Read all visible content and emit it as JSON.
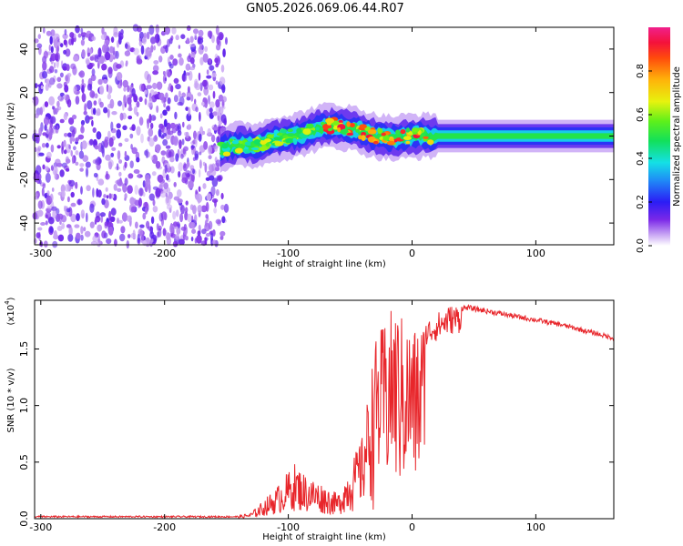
{
  "title": "GN05.2026.069.06.44.R07",
  "chart_data": [
    {
      "type": "heatmap",
      "xlabel": "Height of straight line (km)",
      "ylabel": "Frequency (Hz)",
      "xlim": [
        -305,
        163
      ],
      "ylim": [
        -50,
        50
      ],
      "xticks": [
        -300,
        -200,
        -100,
        0,
        100
      ],
      "yticks": [
        -40,
        -20,
        0,
        20,
        40
      ],
      "colorbar": {
        "label": "Normalized spectral amplitude",
        "range": [
          0,
          1
        ],
        "ticks": [
          0.0,
          0.2,
          0.4,
          0.6,
          0.8
        ],
        "tick_labels": [
          "0.0",
          "0.2",
          "0.4",
          "0.6",
          "0.8"
        ]
      },
      "noise_region": {
        "x_range": [
          -305,
          -150
        ],
        "freq_range": [
          -50,
          50
        ],
        "amplitude_range": [
          0.05,
          0.25
        ]
      },
      "center_frequency_track": [
        {
          "x": -155,
          "f": -6
        },
        {
          "x": -140,
          "f": -4
        },
        {
          "x": -125,
          "f": -4
        },
        {
          "x": -110,
          "f": -1
        },
        {
          "x": -95,
          "f": 0
        },
        {
          "x": -80,
          "f": 3
        },
        {
          "x": -65,
          "f": 5
        },
        {
          "x": -55,
          "f": 4
        },
        {
          "x": -45,
          "f": 3
        },
        {
          "x": -30,
          "f": 0
        },
        {
          "x": -15,
          "f": -1
        },
        {
          "x": 0,
          "f": 0
        },
        {
          "x": 50,
          "f": 0
        },
        {
          "x": 100,
          "f": 0
        },
        {
          "x": 163,
          "f": 0
        }
      ]
    },
    {
      "type": "line",
      "xlabel": "Height of straight line (km)",
      "ylabel": "SNR (10 * v/v)",
      "scale_label": "(x10",
      "scale_exp": "4",
      "xlim": [
        -305,
        163
      ],
      "ylim": [
        0,
        1.93
      ],
      "xticks": [
        -300,
        -200,
        -100,
        0,
        100
      ],
      "yticks": [
        0.0,
        0.5,
        1.0,
        1.5
      ],
      "ytick_labels": [
        "0.0",
        "0.5",
        "1.0",
        "1.5"
      ],
      "color": "#e8262b",
      "envelope": [
        {
          "x": -305,
          "y": 0.0
        },
        {
          "x": -150,
          "y": 0.0
        },
        {
          "x": -130,
          "y": 0.05
        },
        {
          "x": -110,
          "y": 0.25
        },
        {
          "x": -95,
          "y": 0.45
        },
        {
          "x": -85,
          "y": 0.35
        },
        {
          "x": -75,
          "y": 0.3
        },
        {
          "x": -60,
          "y": 0.2
        },
        {
          "x": -40,
          "y": 0.7
        },
        {
          "x": -30,
          "y": 1.5
        },
        {
          "x": -15,
          "y": 1.8
        },
        {
          "x": 0,
          "y": 1.6
        },
        {
          "x": 15,
          "y": 1.75
        },
        {
          "x": 30,
          "y": 1.85
        },
        {
          "x": 45,
          "y": 1.87
        },
        {
          "x": 80,
          "y": 1.8
        },
        {
          "x": 120,
          "y": 1.72
        },
        {
          "x": 163,
          "y": 1.6
        }
      ]
    }
  ]
}
